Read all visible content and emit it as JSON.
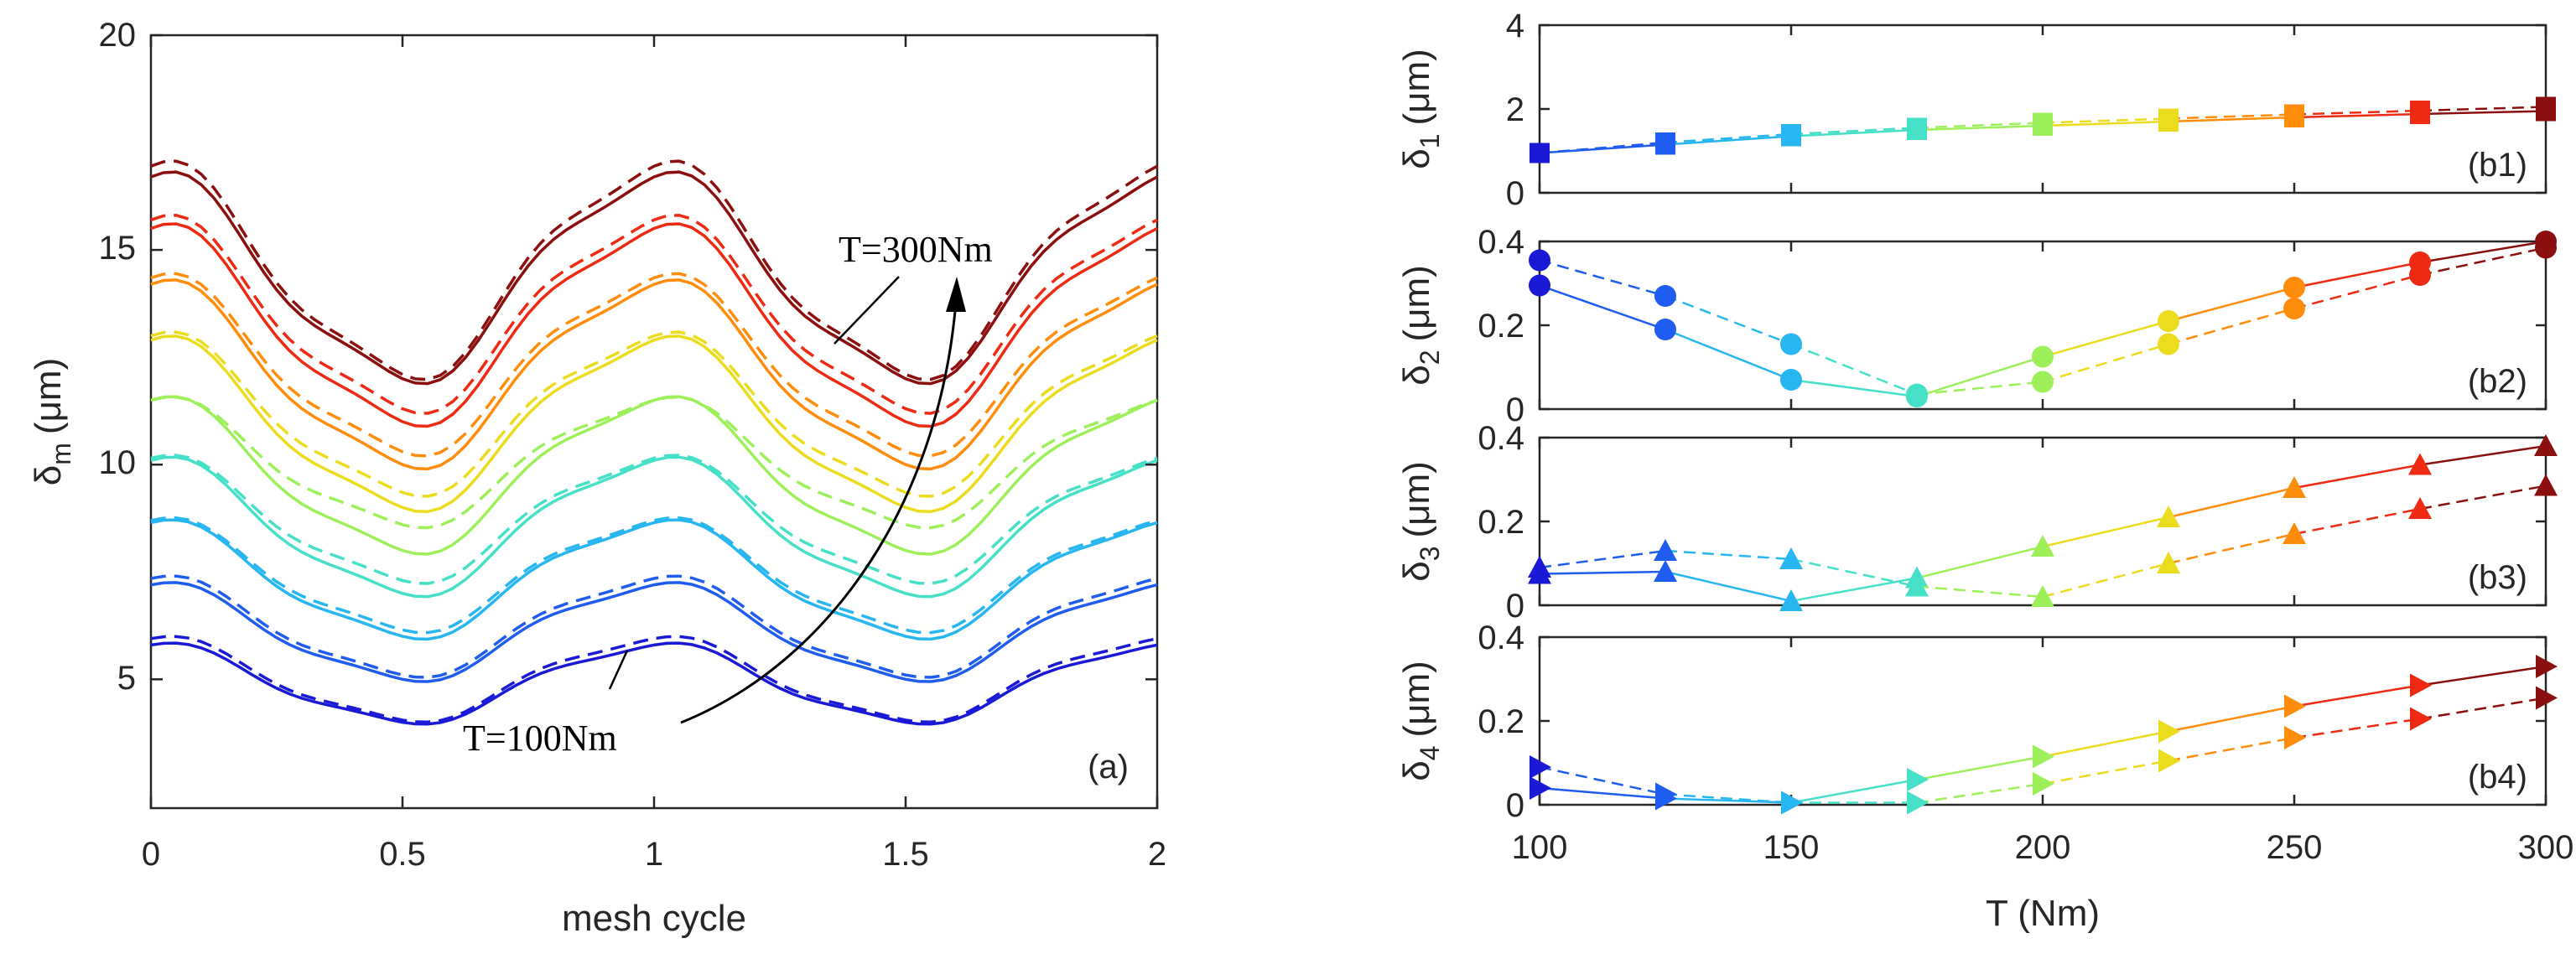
{
  "figure": {
    "panel_a": {
      "label": "(a)",
      "xlabel": "mesh cycle",
      "ylabel_main": "δ",
      "ylabel_sub": "m",
      "ylabel_unit": "(μm)",
      "xticks": [
        "0",
        "0.5",
        "1",
        "1.5",
        "2"
      ],
      "yticks": [
        "5",
        "10",
        "15",
        "20"
      ],
      "annotation_high": "T=300Nm",
      "annotation_low": "T=100Nm"
    },
    "panels_b": [
      {
        "label": "(b1)",
        "ylabel_main": "δ",
        "ylabel_sub": "1",
        "ylabel_unit": "(μm)",
        "yticks": [
          "0",
          "2",
          "4"
        ]
      },
      {
        "label": "(b2)",
        "ylabel_main": "δ",
        "ylabel_sub": "2",
        "ylabel_unit": "(μm)",
        "yticks": [
          "0",
          "0.2",
          "0.4"
        ]
      },
      {
        "label": "(b3)",
        "ylabel_main": "δ",
        "ylabel_sub": "3",
        "ylabel_unit": "(μm)",
        "yticks": [
          "0",
          "0.2",
          "0.4"
        ]
      },
      {
        "label": "(b4)",
        "ylabel_main": "δ",
        "ylabel_sub": "4",
        "ylabel_unit": "(μm)",
        "yticks": [
          "0",
          "0.2",
          "0.4"
        ]
      }
    ],
    "b_xlabel": "T (Nm)",
    "b_xticks": [
      "100",
      "150",
      "200",
      "250",
      "300"
    ]
  },
  "chart_data": [
    {
      "type": "line",
      "id": "a",
      "title": "",
      "xlabel": "mesh cycle",
      "ylabel": "δm (μm)",
      "xlim": [
        0,
        2
      ],
      "ylim": [
        2,
        20
      ],
      "x_step": 0.025,
      "series_note": "9 torque levels (T = 100…300 Nm, 25 Nm step); solid and dashed variant per torque",
      "torques": [
        100,
        125,
        150,
        175,
        200,
        225,
        250,
        275,
        300
      ],
      "colors": [
        "#1a1ad6",
        "#1f5cf0",
        "#27b6f0",
        "#46e0c8",
        "#9ef05a",
        "#ecdc1e",
        "#ff8c0a",
        "#ee2a12",
        "#8c0f0f"
      ],
      "base": [
        5,
        6,
        7,
        8,
        9,
        10,
        11,
        12,
        13
      ],
      "solid_minimum": [
        4.0,
        5.0,
        6.0,
        7.0,
        8.0,
        9.0,
        10.0,
        11.0,
        12.0
      ],
      "solid_maximum_at_1": [
        5.8,
        7.2,
        8.65,
        10.1,
        11.5,
        12.9,
        14.2,
        15.5,
        16.7
      ],
      "dashed_minimum": [
        4.05,
        5.1,
        6.15,
        7.3,
        8.6,
        9.35,
        10.3,
        11.3,
        12.1
      ],
      "dashed_maximum_at_1": [
        5.95,
        7.35,
        8.7,
        10.15,
        11.5,
        13.0,
        14.35,
        15.7,
        16.95
      ]
    },
    {
      "type": "line",
      "id": "b1",
      "xlabel": "T (Nm)",
      "ylabel": "δ1 (μm)",
      "marker": "square",
      "x": [
        100,
        125,
        150,
        175,
        200,
        225,
        250,
        275,
        300
      ],
      "xlim": [
        100,
        300
      ],
      "ylim": [
        0,
        4
      ],
      "series": [
        {
          "name": "solid",
          "dash": false,
          "values": [
            0.95,
            1.15,
            1.35,
            1.5,
            1.6,
            1.7,
            1.8,
            1.88,
            1.95
          ]
        },
        {
          "name": "dashed",
          "dash": true,
          "values": [
            0.95,
            1.2,
            1.4,
            1.55,
            1.67,
            1.77,
            1.87,
            1.96,
            2.05
          ]
        }
      ]
    },
    {
      "type": "line",
      "id": "b2",
      "xlabel": "T (Nm)",
      "ylabel": "δ2 (μm)",
      "marker": "circle",
      "x": [
        100,
        125,
        150,
        175,
        200,
        225,
        250,
        275,
        300
      ],
      "xlim": [
        100,
        300
      ],
      "ylim": [
        0,
        0.4
      ],
      "series": [
        {
          "name": "solid",
          "dash": false,
          "values": [
            0.295,
            0.19,
            0.07,
            0.03,
            0.125,
            0.21,
            0.29,
            0.35,
            0.4
          ]
        },
        {
          "name": "dashed",
          "dash": true,
          "values": [
            0.355,
            0.27,
            0.155,
            0.035,
            0.065,
            0.155,
            0.24,
            0.32,
            0.385
          ]
        }
      ]
    },
    {
      "type": "line",
      "id": "b3",
      "xlabel": "T (Nm)",
      "ylabel": "δ3 (μm)",
      "marker": "triangle-up",
      "x": [
        100,
        125,
        150,
        175,
        200,
        225,
        250,
        275,
        300
      ],
      "xlim": [
        100,
        300
      ],
      "ylim": [
        0,
        0.4
      ],
      "series": [
        {
          "name": "solid",
          "dash": false,
          "values": [
            0.075,
            0.08,
            0.01,
            0.065,
            0.14,
            0.21,
            0.28,
            0.335,
            0.38
          ]
        },
        {
          "name": "dashed",
          "dash": true,
          "values": [
            0.09,
            0.13,
            0.11,
            0.045,
            0.02,
            0.1,
            0.17,
            0.23,
            0.285
          ]
        }
      ]
    },
    {
      "type": "line",
      "id": "b4",
      "xlabel": "T (Nm)",
      "ylabel": "δ4 (μm)",
      "marker": "triangle-right",
      "x": [
        100,
        125,
        150,
        175,
        200,
        225,
        250,
        275,
        300
      ],
      "xlim": [
        100,
        300
      ],
      "ylim": [
        0,
        0.4
      ],
      "series": [
        {
          "name": "solid",
          "dash": false,
          "values": [
            0.04,
            0.015,
            0.005,
            0.06,
            0.115,
            0.175,
            0.235,
            0.285,
            0.33
          ]
        },
        {
          "name": "dashed",
          "dash": true,
          "values": [
            0.09,
            0.025,
            0.005,
            0.005,
            0.05,
            0.105,
            0.16,
            0.205,
            0.255
          ]
        }
      ]
    }
  ]
}
